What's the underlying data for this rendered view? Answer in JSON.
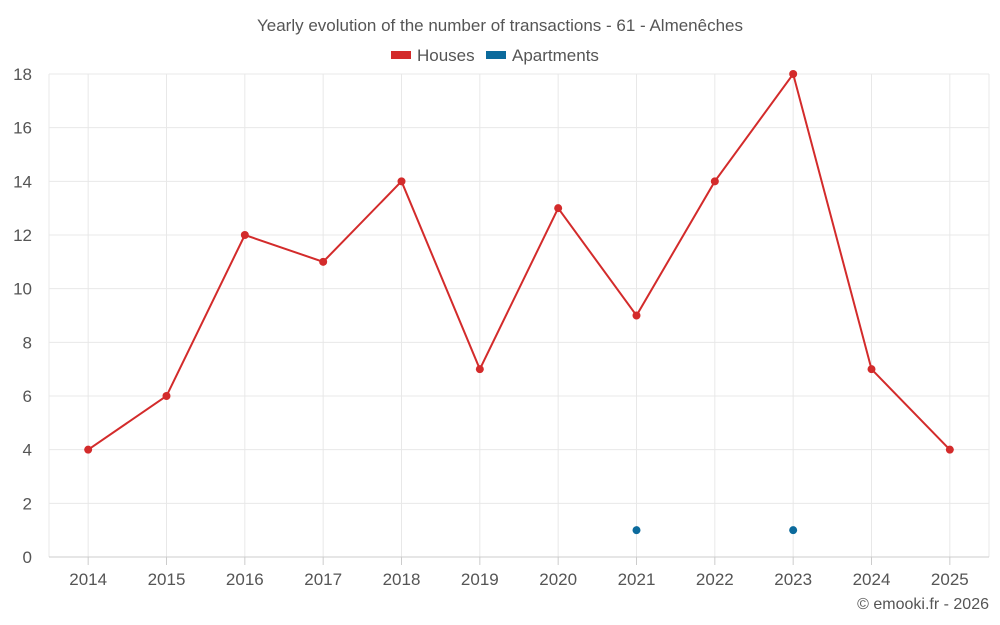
{
  "chart_data": {
    "type": "line",
    "title": "Yearly evolution of the number of transactions - 61 - Almenêches",
    "categories": [
      "2014",
      "2015",
      "2016",
      "2017",
      "2018",
      "2019",
      "2020",
      "2021",
      "2022",
      "2023",
      "2024",
      "2025"
    ],
    "series": [
      {
        "name": "Houses",
        "color": "#d32b2b",
        "values": [
          4,
          6,
          12,
          11,
          14,
          7,
          13,
          9,
          14,
          18,
          7,
          4
        ]
      },
      {
        "name": "Apartments",
        "color": "#0b6a9c",
        "values": [
          null,
          null,
          null,
          null,
          null,
          null,
          null,
          1,
          null,
          1,
          null,
          null
        ]
      }
    ],
    "ylim": [
      0,
      18
    ],
    "yticks": [
      0,
      2,
      4,
      6,
      8,
      10,
      12,
      14,
      16,
      18
    ],
    "xlabel": "",
    "ylabel": "",
    "grid": true,
    "legend_position": "top-center"
  },
  "credit": "© emooki.fr - 2026"
}
